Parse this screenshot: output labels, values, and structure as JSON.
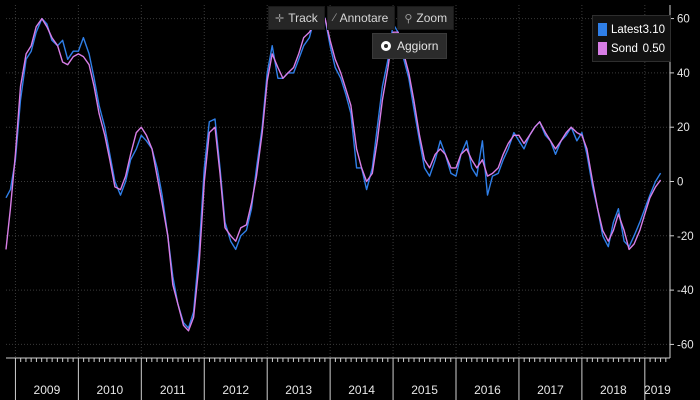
{
  "toolbar": {
    "track_label": "Track",
    "track_icon": "crosshair-icon",
    "annotate_label": "Annotare",
    "annotate_icon": "pencil-icon",
    "zoom_label": "Zoom",
    "zoom_icon": "magnifier-icon",
    "refresh_label": "Aggiorn",
    "refresh_icon": "refresh-circle-icon"
  },
  "legend": {
    "items": [
      {
        "name": "Latest",
        "value": "3.10",
        "color": "#2f7fe8"
      },
      {
        "name": "Sond",
        "value": "0.50",
        "color": "#d87ee6"
      }
    ]
  },
  "chart_data": {
    "type": "line",
    "title": "",
    "xlabel": "",
    "ylabel": "",
    "ylim": [
      -65,
      65
    ],
    "xlim": [
      2008.85,
      2019.4
    ],
    "y_ticks": [
      60,
      40,
      20,
      0,
      -20,
      -40,
      -60
    ],
    "x_tick_labels": [
      "2009",
      "2010",
      "2011",
      "2012",
      "2013",
      "2014",
      "2015",
      "2016",
      "2017",
      "2018",
      "2019"
    ],
    "grid": true,
    "legend_position": "top-right",
    "colors": {
      "background": "#000000",
      "grid": "#3a3a3a",
      "axis": "#cfcfcf"
    },
    "series": [
      {
        "name": "Latest",
        "color": "#2f7fe8",
        "points": [
          [
            2008.85,
            -6
          ],
          [
            2008.92,
            -3
          ],
          [
            2009.0,
            8
          ],
          [
            2009.08,
            30
          ],
          [
            2009.17,
            45
          ],
          [
            2009.25,
            48
          ],
          [
            2009.33,
            55
          ],
          [
            2009.42,
            60
          ],
          [
            2009.5,
            58
          ],
          [
            2009.58,
            52
          ],
          [
            2009.67,
            50
          ],
          [
            2009.75,
            52
          ],
          [
            2009.83,
            45
          ],
          [
            2009.92,
            48
          ],
          [
            2010.0,
            48
          ],
          [
            2010.08,
            53
          ],
          [
            2010.17,
            47
          ],
          [
            2010.25,
            38
          ],
          [
            2010.33,
            28
          ],
          [
            2010.42,
            20
          ],
          [
            2010.5,
            10
          ],
          [
            2010.58,
            0
          ],
          [
            2010.67,
            -5
          ],
          [
            2010.75,
            0
          ],
          [
            2010.83,
            8
          ],
          [
            2010.92,
            12
          ],
          [
            2011.0,
            17
          ],
          [
            2011.08,
            15
          ],
          [
            2011.17,
            12
          ],
          [
            2011.25,
            5
          ],
          [
            2011.33,
            -5
          ],
          [
            2011.42,
            -20
          ],
          [
            2011.5,
            -35
          ],
          [
            2011.58,
            -45
          ],
          [
            2011.67,
            -52
          ],
          [
            2011.75,
            -54
          ],
          [
            2011.83,
            -48
          ],
          [
            2011.92,
            -25
          ],
          [
            2012.0,
            5
          ],
          [
            2012.08,
            22
          ],
          [
            2012.17,
            23
          ],
          [
            2012.25,
            5
          ],
          [
            2012.33,
            -15
          ],
          [
            2012.42,
            -22
          ],
          [
            2012.5,
            -25
          ],
          [
            2012.58,
            -20
          ],
          [
            2012.67,
            -18
          ],
          [
            2012.75,
            -10
          ],
          [
            2012.83,
            5
          ],
          [
            2012.92,
            20
          ],
          [
            2013.0,
            40
          ],
          [
            2013.08,
            50
          ],
          [
            2013.17,
            38
          ],
          [
            2013.25,
            38
          ],
          [
            2013.33,
            40
          ],
          [
            2013.42,
            40
          ],
          [
            2013.5,
            45
          ],
          [
            2013.58,
            50
          ],
          [
            2013.67,
            53
          ],
          [
            2013.75,
            60
          ],
          [
            2013.83,
            64
          ],
          [
            2013.92,
            60
          ],
          [
            2014.0,
            50
          ],
          [
            2014.08,
            42
          ],
          [
            2014.17,
            38
          ],
          [
            2014.25,
            32
          ],
          [
            2014.33,
            25
          ],
          [
            2014.42,
            5
          ],
          [
            2014.5,
            5
          ],
          [
            2014.58,
            -3
          ],
          [
            2014.67,
            5
          ],
          [
            2014.75,
            20
          ],
          [
            2014.83,
            35
          ],
          [
            2014.92,
            45
          ],
          [
            2015.0,
            58
          ],
          [
            2015.08,
            55
          ],
          [
            2015.17,
            45
          ],
          [
            2015.25,
            38
          ],
          [
            2015.33,
            27
          ],
          [
            2015.42,
            15
          ],
          [
            2015.5,
            5
          ],
          [
            2015.58,
            2
          ],
          [
            2015.67,
            8
          ],
          [
            2015.75,
            15
          ],
          [
            2015.83,
            10
          ],
          [
            2015.92,
            3
          ],
          [
            2016.0,
            2
          ],
          [
            2016.08,
            10
          ],
          [
            2016.17,
            15
          ],
          [
            2016.25,
            5
          ],
          [
            2016.33,
            2
          ],
          [
            2016.42,
            15
          ],
          [
            2016.5,
            -5
          ],
          [
            2016.58,
            2
          ],
          [
            2016.67,
            3
          ],
          [
            2016.75,
            8
          ],
          [
            2016.83,
            12
          ],
          [
            2016.92,
            18
          ],
          [
            2017.0,
            15
          ],
          [
            2017.08,
            12
          ],
          [
            2017.17,
            17
          ],
          [
            2017.25,
            20
          ],
          [
            2017.33,
            22
          ],
          [
            2017.42,
            17
          ],
          [
            2017.5,
            15
          ],
          [
            2017.58,
            10
          ],
          [
            2017.67,
            15
          ],
          [
            2017.75,
            17
          ],
          [
            2017.83,
            20
          ],
          [
            2017.92,
            15
          ],
          [
            2018.0,
            18
          ],
          [
            2018.08,
            10
          ],
          [
            2018.17,
            -2
          ],
          [
            2018.25,
            -10
          ],
          [
            2018.33,
            -20
          ],
          [
            2018.42,
            -24
          ],
          [
            2018.5,
            -15
          ],
          [
            2018.58,
            -10
          ],
          [
            2018.67,
            -22
          ],
          [
            2018.75,
            -24
          ],
          [
            2018.83,
            -20
          ],
          [
            2018.92,
            -15
          ],
          [
            2019.0,
            -10
          ],
          [
            2019.08,
            -5
          ],
          [
            2019.17,
            0
          ],
          [
            2019.25,
            3.1
          ]
        ]
      },
      {
        "name": "Sond",
        "color": "#d87ee6",
        "points": [
          [
            2008.85,
            -25
          ],
          [
            2008.92,
            -10
          ],
          [
            2009.0,
            10
          ],
          [
            2009.08,
            35
          ],
          [
            2009.17,
            47
          ],
          [
            2009.25,
            50
          ],
          [
            2009.33,
            57
          ],
          [
            2009.42,
            60
          ],
          [
            2009.5,
            57
          ],
          [
            2009.58,
            53
          ],
          [
            2009.67,
            50
          ],
          [
            2009.75,
            44
          ],
          [
            2009.83,
            43
          ],
          [
            2009.92,
            46
          ],
          [
            2010.0,
            47
          ],
          [
            2010.08,
            46
          ],
          [
            2010.17,
            43
          ],
          [
            2010.25,
            35
          ],
          [
            2010.33,
            25
          ],
          [
            2010.42,
            17
          ],
          [
            2010.5,
            8
          ],
          [
            2010.58,
            -2
          ],
          [
            2010.67,
            -3
          ],
          [
            2010.75,
            2
          ],
          [
            2010.83,
            10
          ],
          [
            2010.92,
            18
          ],
          [
            2011.0,
            20
          ],
          [
            2011.08,
            17
          ],
          [
            2011.17,
            12
          ],
          [
            2011.25,
            2
          ],
          [
            2011.33,
            -8
          ],
          [
            2011.42,
            -20
          ],
          [
            2011.5,
            -38
          ],
          [
            2011.58,
            -45
          ],
          [
            2011.67,
            -53
          ],
          [
            2011.75,
            -55
          ],
          [
            2011.83,
            -50
          ],
          [
            2011.92,
            -30
          ],
          [
            2012.0,
            0
          ],
          [
            2012.08,
            18
          ],
          [
            2012.17,
            20
          ],
          [
            2012.25,
            3
          ],
          [
            2012.33,
            -17
          ],
          [
            2012.42,
            -20
          ],
          [
            2012.5,
            -22
          ],
          [
            2012.58,
            -17
          ],
          [
            2012.67,
            -16
          ],
          [
            2012.75,
            -8
          ],
          [
            2012.83,
            2
          ],
          [
            2012.92,
            18
          ],
          [
            2013.0,
            37
          ],
          [
            2013.08,
            47
          ],
          [
            2013.17,
            42
          ],
          [
            2013.25,
            38
          ],
          [
            2013.33,
            40
          ],
          [
            2013.42,
            42
          ],
          [
            2013.5,
            47
          ],
          [
            2013.58,
            53
          ],
          [
            2013.67,
            55
          ],
          [
            2013.75,
            58
          ],
          [
            2013.83,
            62
          ],
          [
            2013.92,
            60
          ],
          [
            2014.0,
            52
          ],
          [
            2014.08,
            45
          ],
          [
            2014.17,
            40
          ],
          [
            2014.25,
            34
          ],
          [
            2014.33,
            28
          ],
          [
            2014.42,
            12
          ],
          [
            2014.5,
            5
          ],
          [
            2014.58,
            0
          ],
          [
            2014.67,
            3
          ],
          [
            2014.75,
            15
          ],
          [
            2014.83,
            30
          ],
          [
            2014.92,
            42
          ],
          [
            2015.0,
            55
          ],
          [
            2015.08,
            55
          ],
          [
            2015.17,
            47
          ],
          [
            2015.25,
            40
          ],
          [
            2015.33,
            30
          ],
          [
            2015.42,
            17
          ],
          [
            2015.5,
            8
          ],
          [
            2015.58,
            5
          ],
          [
            2015.67,
            10
          ],
          [
            2015.75,
            12
          ],
          [
            2015.83,
            10
          ],
          [
            2015.92,
            5
          ],
          [
            2016.0,
            5
          ],
          [
            2016.08,
            10
          ],
          [
            2016.17,
            12
          ],
          [
            2016.25,
            8
          ],
          [
            2016.33,
            5
          ],
          [
            2016.42,
            8
          ],
          [
            2016.5,
            2
          ],
          [
            2016.58,
            3
          ],
          [
            2016.67,
            5
          ],
          [
            2016.75,
            10
          ],
          [
            2016.83,
            14
          ],
          [
            2016.92,
            17
          ],
          [
            2017.0,
            17
          ],
          [
            2017.08,
            14
          ],
          [
            2017.17,
            17
          ],
          [
            2017.25,
            20
          ],
          [
            2017.33,
            22
          ],
          [
            2017.42,
            18
          ],
          [
            2017.5,
            15
          ],
          [
            2017.58,
            12
          ],
          [
            2017.67,
            15
          ],
          [
            2017.75,
            18
          ],
          [
            2017.83,
            20
          ],
          [
            2017.92,
            18
          ],
          [
            2018.0,
            17
          ],
          [
            2018.08,
            12
          ],
          [
            2018.17,
            0
          ],
          [
            2018.25,
            -10
          ],
          [
            2018.33,
            -18
          ],
          [
            2018.42,
            -22
          ],
          [
            2018.5,
            -18
          ],
          [
            2018.58,
            -12
          ],
          [
            2018.67,
            -18
          ],
          [
            2018.75,
            -25
          ],
          [
            2018.83,
            -23
          ],
          [
            2018.92,
            -18
          ],
          [
            2019.0,
            -12
          ],
          [
            2019.08,
            -6
          ],
          [
            2019.17,
            -2
          ],
          [
            2019.25,
            0.5
          ]
        ]
      }
    ]
  }
}
